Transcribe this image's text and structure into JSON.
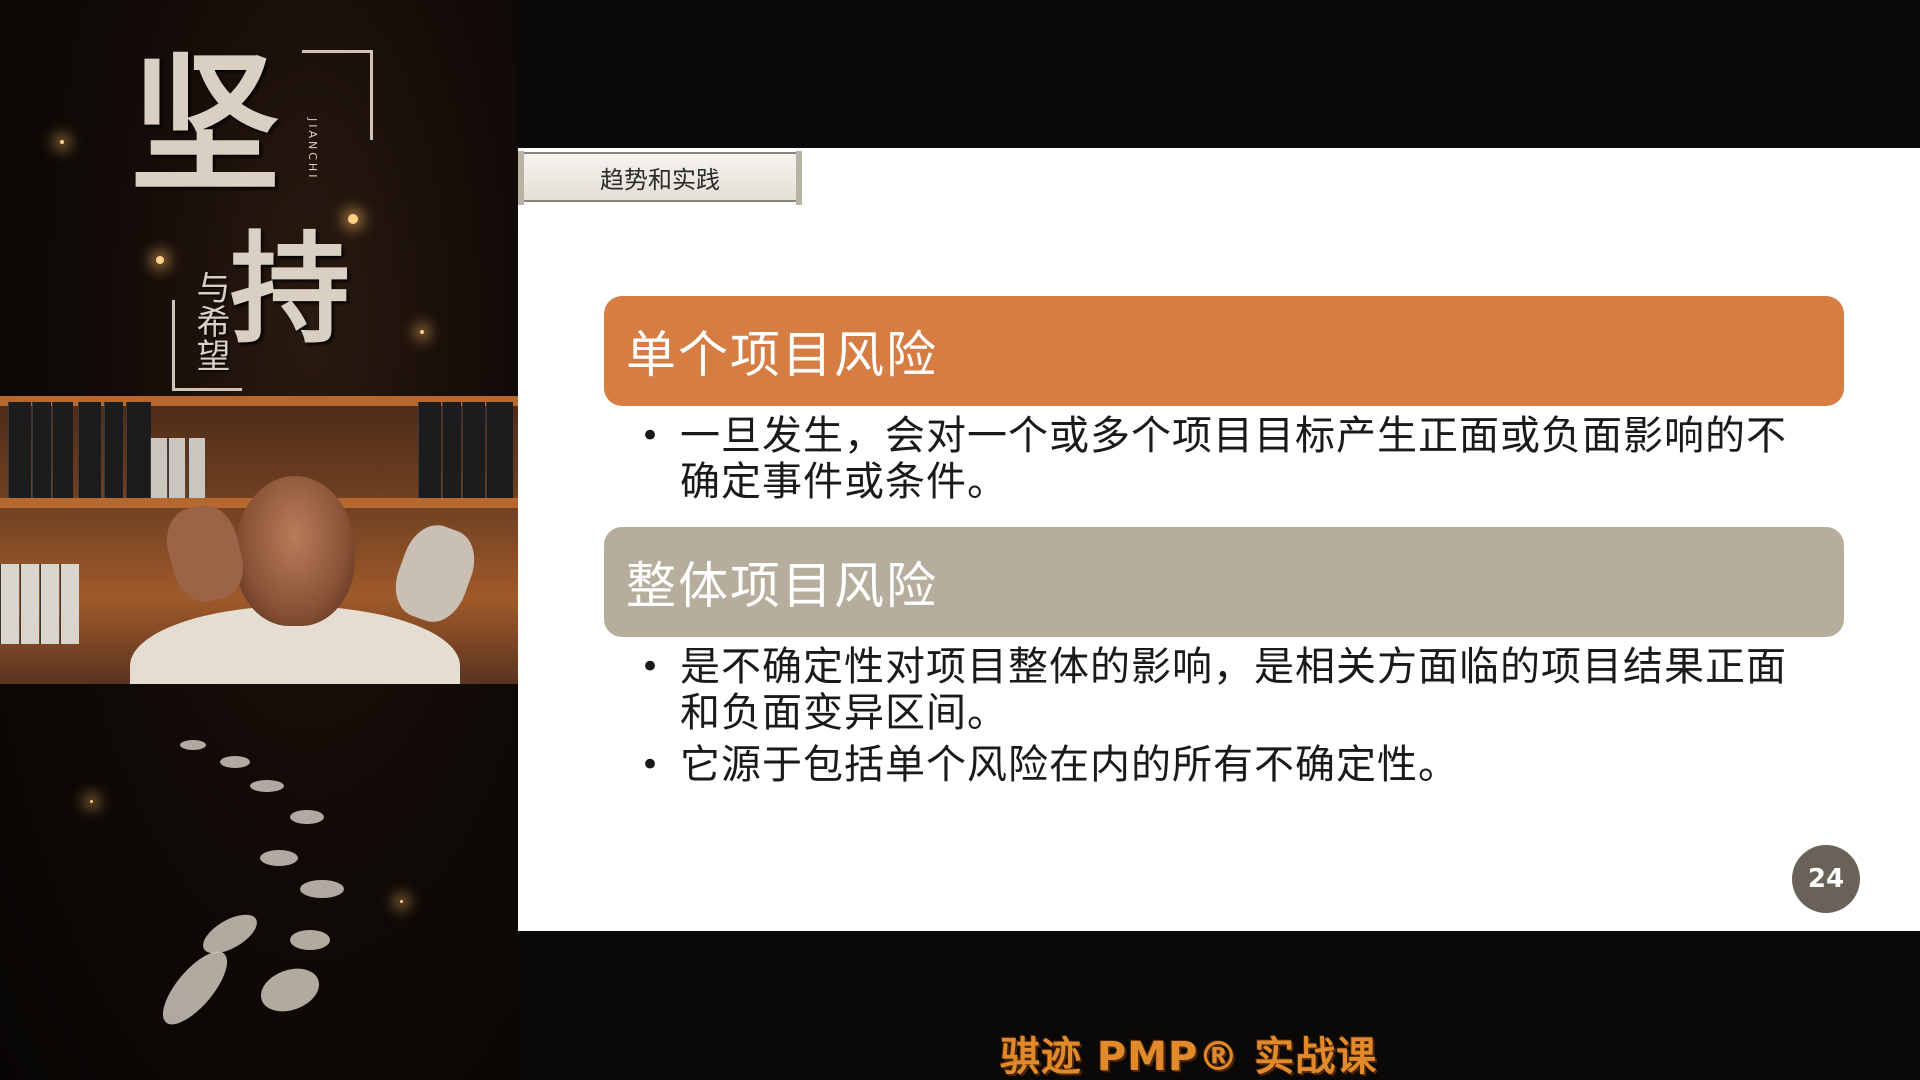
{
  "poster": {
    "title_char_1": "坚",
    "title_char_2": "持",
    "subtitle": "与希望",
    "romanization": "JIANCHI"
  },
  "slide": {
    "section_tab": "趋势和实践",
    "blocks": [
      {
        "heading": "单个项目风险",
        "color": "#d57d42",
        "bullets": [
          "一旦发生，会对一个或多个项目目标产生正面或负面影响的不确定事件或条件。"
        ]
      },
      {
        "heading": "整体项目风险",
        "color": "#b6ad9c",
        "bullets": [
          "是不确定性对项目整体的影响，是相关方面临的项目结果正面和负面变异区间。",
          "它源于包括单个风险在内的所有不确定性。"
        ]
      }
    ],
    "page_number": "24"
  },
  "brand": {
    "text": "骐迹 PMP® 实战课",
    "color": "#e08a2c"
  }
}
